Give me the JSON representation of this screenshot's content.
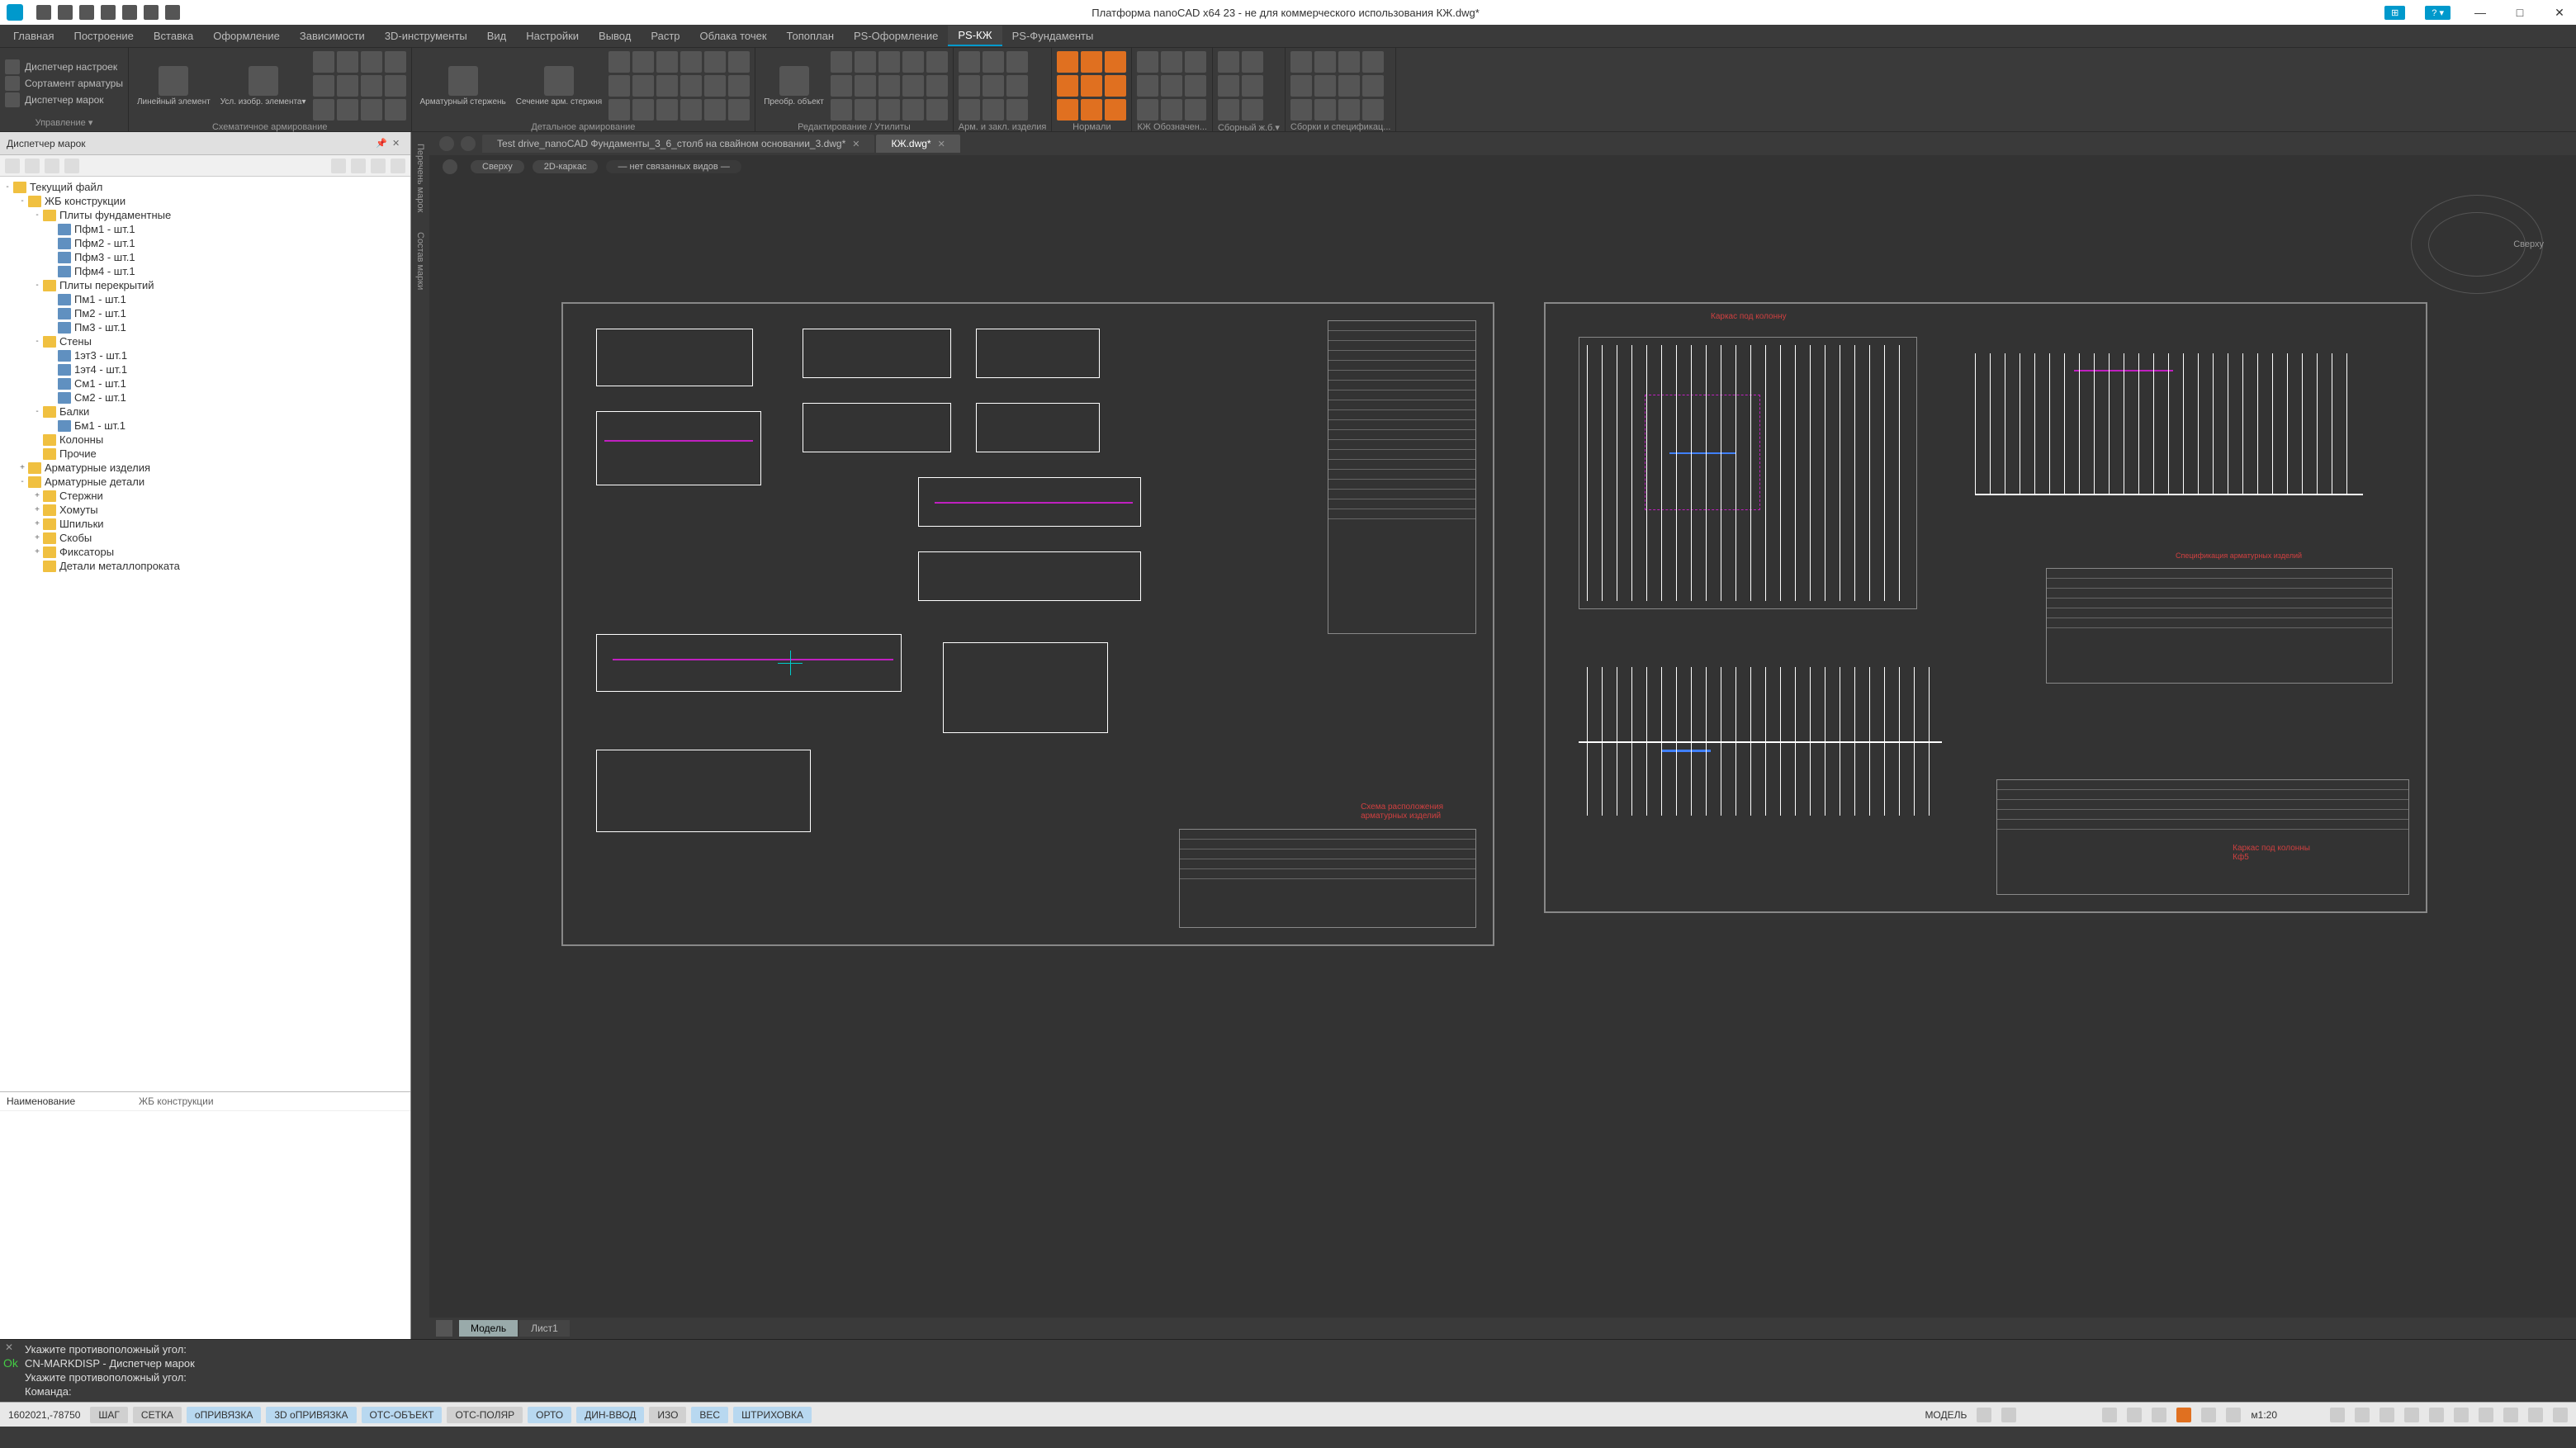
{
  "titlebar": {
    "title": "Платформа nanoCAD x64 23 - не для коммерческого использования КЖ.dwg*"
  },
  "menubar": {
    "items": [
      "Главная",
      "Построение",
      "Вставка",
      "Оформление",
      "Зависимости",
      "3D-инструменты",
      "Вид",
      "Настройки",
      "Вывод",
      "Растр",
      "Облака точек",
      "Топоплан",
      "PS-Оформление",
      "PS-КЖ",
      "PS-Фундаменты"
    ],
    "active_index": 13
  },
  "ribbon": {
    "groups": [
      {
        "label": "Управление",
        "has_dropdown": true,
        "items_small": [
          "Диспетчер настроек",
          "Сортамент арматуры",
          "Диспетчер марок"
        ]
      },
      {
        "label": "Схематичное армирование",
        "large": [
          {
            "label": "Линейный\nэлемент"
          },
          {
            "label": "Усл. изобр.\nэлемента▾"
          }
        ],
        "grid_cols": 4,
        "grid_rows": 3
      },
      {
        "label": "Детальное армирование",
        "large": [
          {
            "label": "Арматурный\nстержень"
          },
          {
            "label": "Сечение\nарм. стержня"
          }
        ],
        "grid_cols": 6,
        "grid_rows": 3
      },
      {
        "label": "Редактирование / Утилиты",
        "large": [
          {
            "label": "Преобр.\nобъект"
          }
        ],
        "grid_cols": 5,
        "grid_rows": 3
      },
      {
        "label": "Арм. и закл. изделия",
        "grid_cols": 3,
        "grid_rows": 3
      },
      {
        "label": "Нормали",
        "grid_cols": 3,
        "grid_rows": 3,
        "orange": true
      },
      {
        "label": "КЖ Обозначен...",
        "grid_cols": 3,
        "grid_rows": 3
      },
      {
        "label": "Сборный ж.б.▾",
        "grid_cols": 2,
        "grid_rows": 3
      },
      {
        "label": "Сборки и спецификац...",
        "grid_cols": 4,
        "grid_rows": 3
      }
    ]
  },
  "panel": {
    "title": "Диспетчер марок",
    "tree": [
      {
        "l": 0,
        "t": "folder",
        "toggle": "-",
        "text": "Текущий файл"
      },
      {
        "l": 1,
        "t": "folder",
        "toggle": "-",
        "text": "ЖБ конструкции"
      },
      {
        "l": 2,
        "t": "folder",
        "toggle": "-",
        "text": "Плиты фундаментные"
      },
      {
        "l": 3,
        "t": "item",
        "text": "Пфм1 - шт.1"
      },
      {
        "l": 3,
        "t": "item",
        "text": "Пфм2 - шт.1"
      },
      {
        "l": 3,
        "t": "item",
        "text": "Пфм3 - шт.1"
      },
      {
        "l": 3,
        "t": "item",
        "text": "Пфм4 - шт.1"
      },
      {
        "l": 2,
        "t": "folder",
        "toggle": "-",
        "text": "Плиты перекрытий"
      },
      {
        "l": 3,
        "t": "item",
        "text": "Пм1 - шт.1"
      },
      {
        "l": 3,
        "t": "item",
        "text": "Пм2 - шт.1"
      },
      {
        "l": 3,
        "t": "item",
        "text": "Пм3 - шт.1"
      },
      {
        "l": 2,
        "t": "folder",
        "toggle": "-",
        "text": "Стены"
      },
      {
        "l": 3,
        "t": "item",
        "text": "1эт3 - шт.1"
      },
      {
        "l": 3,
        "t": "item",
        "text": "1эт4 - шт.1"
      },
      {
        "l": 3,
        "t": "item",
        "text": "См1 - шт.1"
      },
      {
        "l": 3,
        "t": "item",
        "text": "См2 - шт.1"
      },
      {
        "l": 2,
        "t": "folder",
        "toggle": "-",
        "text": "Балки"
      },
      {
        "l": 3,
        "t": "item",
        "text": "Бм1 - шт.1"
      },
      {
        "l": 2,
        "t": "folder",
        "toggle": " ",
        "text": "Колонны"
      },
      {
        "l": 2,
        "t": "folder",
        "toggle": " ",
        "text": "Прочие"
      },
      {
        "l": 1,
        "t": "folder",
        "toggle": "+",
        "text": "Арматурные изделия"
      },
      {
        "l": 1,
        "t": "folder",
        "toggle": "-",
        "text": "Арматурные детали"
      },
      {
        "l": 2,
        "t": "folder",
        "toggle": "+",
        "text": "Стержни"
      },
      {
        "l": 2,
        "t": "folder",
        "toggle": "+",
        "text": "Хомуты"
      },
      {
        "l": 2,
        "t": "folder",
        "toggle": "+",
        "text": "Шпильки"
      },
      {
        "l": 2,
        "t": "folder",
        "toggle": "+",
        "text": "Скобы"
      },
      {
        "l": 2,
        "t": "folder",
        "toggle": "+",
        "text": "Фиксаторы"
      },
      {
        "l": 2,
        "t": "folder",
        "toggle": " ",
        "text": "Детали металлопроката"
      }
    ],
    "props": {
      "key": "Наименование",
      "value": "ЖБ конструкции"
    },
    "side_tabs": [
      "Перечень марок",
      "Состав марки"
    ]
  },
  "file_tabs": [
    {
      "label": "Test drive_nanoCAD Фундаменты_3_6_столб на свайном основании_3.dwg*",
      "active": false
    },
    {
      "label": "КЖ.dwg*",
      "active": true
    }
  ],
  "view_controls": [
    "Сверху",
    "2D-каркас",
    "— нет связанных видов —"
  ],
  "model_tabs": [
    "Модель",
    "Лист1"
  ],
  "compass_label": "Сверху",
  "cmdline": {
    "lines": [
      "Укажите противоположный угол:",
      "CN-MARKDISP - Диспетчер марок",
      "Укажите противоположный угол:",
      "Команда:"
    ]
  },
  "statusbar": {
    "coords": "1602021,-78750",
    "buttons": [
      {
        "label": "ШАГ",
        "active": false
      },
      {
        "label": "СЕТКА",
        "active": false
      },
      {
        "label": "оПРИВЯЗКА",
        "active": true
      },
      {
        "label": "3D оПРИВЯЗКА",
        "active": true
      },
      {
        "label": "ОТС-ОБЪЕКТ",
        "active": true
      },
      {
        "label": "ОТС-ПОЛЯР",
        "active": false
      },
      {
        "label": "ОРТО",
        "active": true
      },
      {
        "label": "ДИН-ВВОД",
        "active": true
      },
      {
        "label": "ИЗО",
        "active": false
      },
      {
        "label": "ВЕС",
        "active": true
      },
      {
        "label": "ШТРИХОВКА",
        "active": true
      }
    ],
    "model_label": "МОДЕЛЬ",
    "scale": "м1:20"
  },
  "colors": {
    "bg": "#3a3a3a",
    "canvas": "#333333",
    "accent": "#0099cc",
    "orange": "#e07020",
    "magenta": "#c020c0"
  }
}
